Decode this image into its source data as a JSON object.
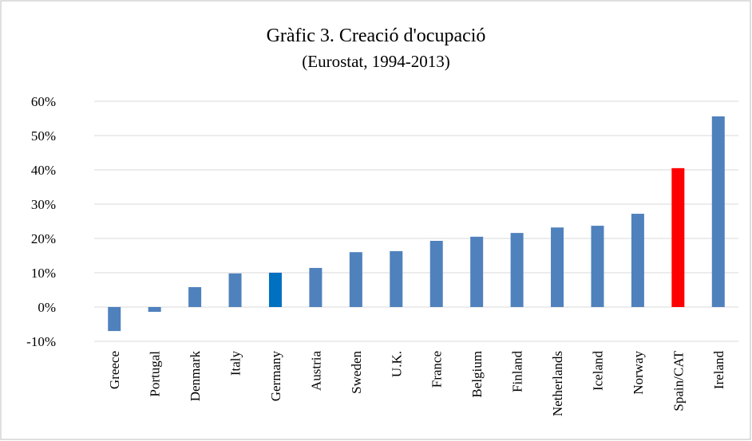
{
  "chart_data": {
    "type": "bar",
    "title": "Gràfic 3. Creació d'ocupació",
    "subtitle": "(Eurostat, 1994-2013)",
    "categories": [
      "Greece",
      "Portugal",
      "Denmark",
      "Italy",
      "Germany",
      "Austria",
      "Sweden",
      "U.K.",
      "France",
      "Belgium",
      "Finland",
      "Netherlands",
      "Iceland",
      "Norway",
      "Spain/CAT",
      "Ireland"
    ],
    "values": [
      -7.0,
      -1.4,
      5.8,
      9.8,
      10.0,
      11.4,
      16.0,
      16.3,
      19.3,
      20.5,
      21.6,
      23.2,
      23.7,
      27.2,
      40.5,
      55.6
    ],
    "colors": [
      "#4f81bd",
      "#4f81bd",
      "#4f81bd",
      "#4f81bd",
      "#0070c0",
      "#4f81bd",
      "#4f81bd",
      "#4f81bd",
      "#4f81bd",
      "#4f81bd",
      "#4f81bd",
      "#4f81bd",
      "#4f81bd",
      "#4f81bd",
      "#ff0000",
      "#4f81bd"
    ],
    "ylim": [
      -10,
      60
    ],
    "yticks": [
      {
        "value": -10,
        "label": "-10%"
      },
      {
        "value": 0,
        "label": "0%"
      },
      {
        "value": 10,
        "label": "10%"
      },
      {
        "value": 20,
        "label": "20%"
      },
      {
        "value": 30,
        "label": "30%"
      },
      {
        "value": 40,
        "label": "40%"
      },
      {
        "value": 50,
        "label": "50%"
      },
      {
        "value": 60,
        "label": "60%"
      }
    ],
    "grid": true
  }
}
